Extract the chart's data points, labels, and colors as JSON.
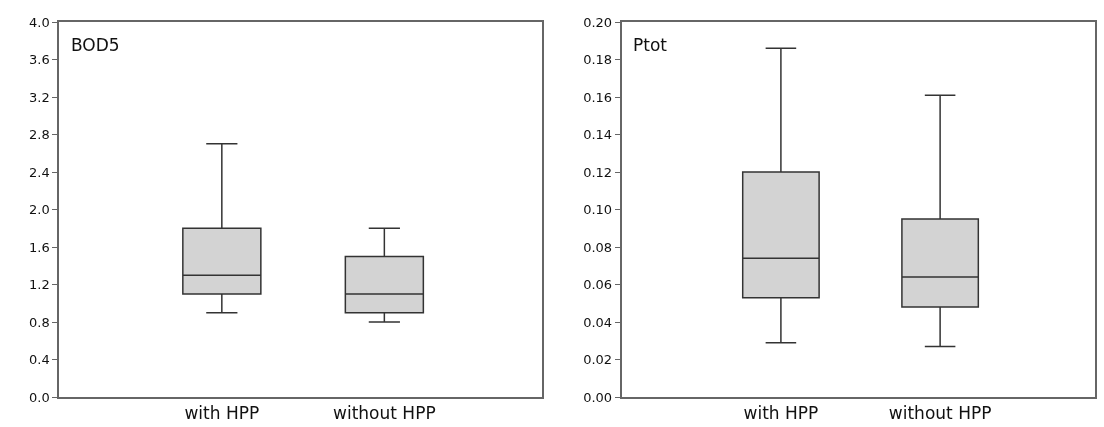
{
  "chart_data": [
    {
      "type": "box",
      "title": "BOD5",
      "categories": [
        "with HPP",
        "without HPP"
      ],
      "color": "#d3d3d3",
      "boxes": [
        {
          "low": 0.9,
          "q1": 1.1,
          "median": 1.3,
          "q3": 1.8,
          "high": 2.7
        },
        {
          "low": 0.8,
          "q1": 0.9,
          "median": 1.1,
          "q3": 1.5,
          "high": 1.8
        }
      ],
      "ylim": [
        0,
        4.0
      ],
      "yticks": [
        {
          "value": 0,
          "label": "0.0"
        },
        0.4,
        0.8,
        1.2,
        1.6,
        {
          "value": 2,
          "label": "2.0"
        },
        2.4,
        2.8,
        3.2,
        3.6,
        {
          "value": 4,
          "label": "4.0"
        }
      ]
    },
    {
      "type": "box",
      "title": "Ptot",
      "categories": [
        "with HPP",
        "without HPP"
      ],
      "color": "#d3d3d3",
      "boxes": [
        {
          "low": 0.029,
          "q1": 0.053,
          "median": 0.074,
          "q3": 0.12,
          "high": 0.186
        },
        {
          "low": 0.027,
          "q1": 0.048,
          "median": 0.064,
          "q3": 0.095,
          "high": 0.161
        }
      ],
      "ylim": [
        0,
        0.2
      ],
      "yticks": [
        {
          "value": 0,
          "label": "0.00"
        },
        0.02,
        0.04,
        0.06,
        0.08,
        {
          "value": 0.1,
          "label": "0.10"
        },
        {
          "value": 0.12,
          "label": "0.12"
        },
        0.14,
        0.16,
        0.18,
        {
          "value": 0.2,
          "label": "0.20"
        }
      ]
    }
  ]
}
